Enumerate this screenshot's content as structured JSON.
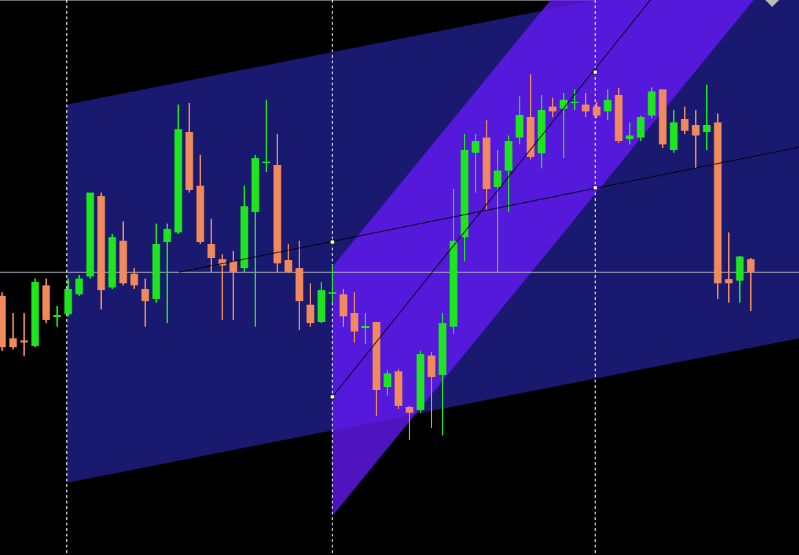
{
  "chart_data": {
    "type": "candlestick",
    "up_color": "#1ee61e",
    "down_color": "#f08a5d",
    "ylim": [
      0,
      807
    ],
    "open": [
      377,
      315,
      312,
      304,
      392,
      346,
      350,
      379,
      405,
      522,
      389,
      457,
      409,
      387,
      372,
      455,
      469,
      615,
      537,
      452,
      430,
      427,
      417,
      499,
      570,
      567,
      429,
      417,
      364,
      339,
      380,
      379,
      352,
      330,
      339,
      244,
      267,
      215,
      211,
      290,
      262,
      332,
      462,
      585,
      607,
      535,
      559,
      607,
      637,
      584,
      652,
      649,
      657,
      655,
      652,
      645,
      669,
      605,
      607,
      639,
      677,
      589,
      634,
      625,
      615,
      629,
      401,
      399,
      430
    ],
    "high": [
      382,
      352,
      352,
      402,
      402,
      362,
      402,
      407,
      527,
      527,
      467,
      485,
      417,
      402,
      482,
      482,
      655,
      657,
      582,
      489,
      437,
      442,
      537,
      582,
      662,
      612,
      452,
      457,
      395,
      397,
      422,
      387,
      382,
      352,
      339,
      269,
      270,
      217,
      297,
      295,
      352,
      532,
      612,
      612,
      632,
      589,
      610,
      667,
      699,
      669,
      665,
      672,
      677,
      672,
      659,
      677,
      679,
      629,
      639,
      680,
      677,
      647,
      652,
      647,
      684,
      642,
      469,
      435,
      432
    ],
    "low": [
      297,
      299,
      289,
      302,
      337,
      332,
      347,
      377,
      402,
      357,
      387,
      392,
      387,
      332,
      367,
      337,
      467,
      527,
      452,
      412,
      342,
      342,
      412,
      332,
      557,
      412,
      410,
      327,
      332,
      337,
      367,
      332,
      309,
      307,
      202,
      232,
      212,
      167,
      207,
      185,
      174,
      322,
      427,
      527,
      502,
      412,
      499,
      597,
      575,
      562,
      637,
      577,
      647,
      637,
      635,
      632,
      599,
      597,
      602,
      635,
      592,
      585,
      612,
      562,
      589,
      372,
      367,
      367,
      355
    ],
    "close": [
      302,
      302,
      309,
      397,
      342,
      349,
      387,
      402,
      527,
      385,
      462,
      395,
      392,
      369,
      452,
      474,
      619,
      531,
      455,
      432,
      421,
      412,
      507,
      577,
      572,
      424,
      412,
      369,
      337,
      385,
      382,
      347,
      325,
      333,
      240,
      264,
      217,
      207,
      292,
      259,
      337,
      457,
      589,
      602,
      532,
      559,
      602,
      640,
      579,
      647,
      645,
      662,
      659,
      645,
      639,
      662,
      602,
      610,
      637,
      674,
      597,
      629,
      617,
      610,
      625,
      395,
      395,
      434,
      412
    ]
  }
}
